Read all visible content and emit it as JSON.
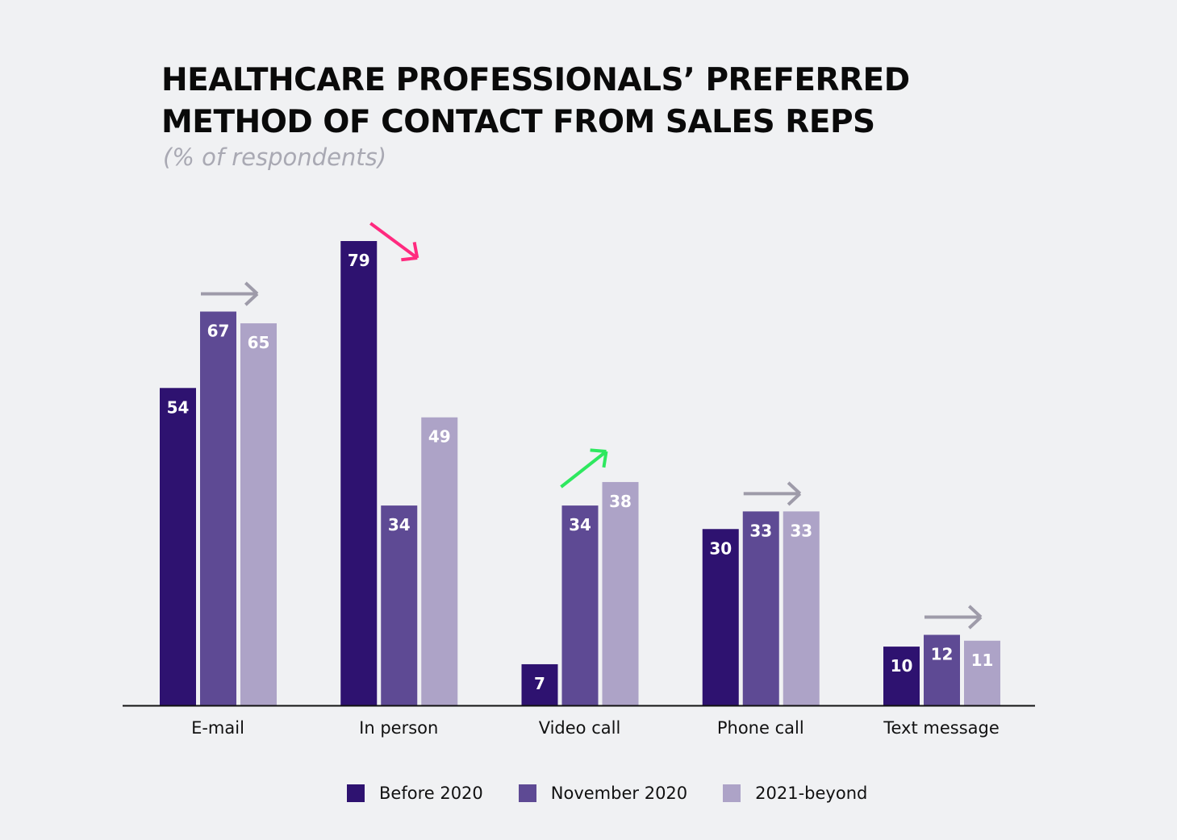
{
  "chart_data": {
    "type": "bar",
    "title": "HEALTHCARE PROFESSIONALS’ PREFERRED METHOD OF CONTACT FROM SALES REPS",
    "title_lines": [
      "HEALTHCARE PROFESSIONALS’ PREFERRED",
      "METHOD OF CONTACT FROM SALES REPS"
    ],
    "subtitle": "(% of respondents)",
    "categories": [
      "E-mail",
      "In person",
      "Video call",
      "Phone call",
      "Text message"
    ],
    "series": [
      {
        "name": "Before 2020",
        "color": "#2e1270",
        "values": [
          54,
          79,
          7,
          30,
          10
        ]
      },
      {
        "name": "November 2020",
        "color": "#5e4a94",
        "values": [
          67,
          34,
          34,
          33,
          12
        ]
      },
      {
        "name": "2021-beyond",
        "color": "#ada3c7",
        "values": [
          65,
          49,
          38,
          33,
          11
        ]
      }
    ],
    "trend_arrows": [
      {
        "category": "E-mail",
        "direction": "flat",
        "color": "#9e9ba9"
      },
      {
        "category": "In person",
        "direction": "down",
        "color": "#ff2a7f"
      },
      {
        "category": "Video call",
        "direction": "up",
        "color": "#2ee85f"
      },
      {
        "category": "Phone call",
        "direction": "flat",
        "color": "#9e9ba9"
      },
      {
        "category": "Text message",
        "direction": "flat",
        "color": "#9e9ba9"
      }
    ],
    "data_labels": true,
    "ylim": [
      0,
      80
    ],
    "grid": false,
    "legend_position": "bottom",
    "xlabel": "",
    "ylabel": ""
  }
}
